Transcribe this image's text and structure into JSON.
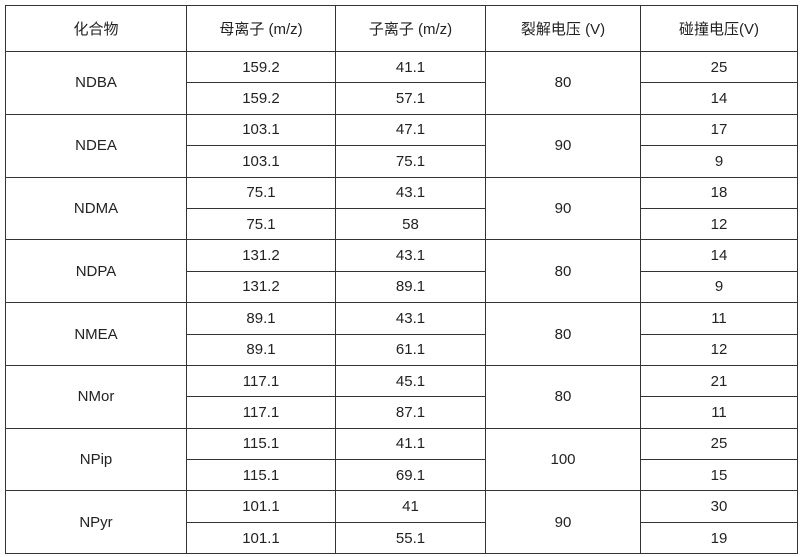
{
  "table": {
    "headers": [
      "化合物",
      "母离子 (m/z)",
      "子离子 (m/z)",
      "裂解电压 (V)",
      "碰撞电压(V)"
    ],
    "groups": [
      {
        "compound": "NDBA",
        "fragmentor": "80",
        "rows": [
          {
            "precursor": "159.2",
            "product": "41.1",
            "collision": "25"
          },
          {
            "precursor": "159.2",
            "product": "57.1",
            "collision": "14"
          }
        ]
      },
      {
        "compound": "NDEA",
        "fragmentor": "90",
        "rows": [
          {
            "precursor": "103.1",
            "product": "47.1",
            "collision": "17"
          },
          {
            "precursor": "103.1",
            "product": "75.1",
            "collision": "9"
          }
        ]
      },
      {
        "compound": "NDMA",
        "fragmentor": "90",
        "rows": [
          {
            "precursor": "75.1",
            "product": "43.1",
            "collision": "18"
          },
          {
            "precursor": "75.1",
            "product": "58",
            "collision": "12"
          }
        ]
      },
      {
        "compound": "NDPA",
        "fragmentor": "80",
        "rows": [
          {
            "precursor": "131.2",
            "product": "43.1",
            "collision": "14"
          },
          {
            "precursor": "131.2",
            "product": "89.1",
            "collision": "9"
          }
        ]
      },
      {
        "compound": "NMEA",
        "fragmentor": "80",
        "rows": [
          {
            "precursor": "89.1",
            "product": "43.1",
            "collision": "11"
          },
          {
            "precursor": "89.1",
            "product": "61.1",
            "collision": "12"
          }
        ]
      },
      {
        "compound": "NMor",
        "fragmentor": "80",
        "rows": [
          {
            "precursor": "117.1",
            "product": "45.1",
            "collision": "21"
          },
          {
            "precursor": "117.1",
            "product": "87.1",
            "collision": "11"
          }
        ]
      },
      {
        "compound": "NPip",
        "fragmentor": "100",
        "rows": [
          {
            "precursor": "115.1",
            "product": "41.1",
            "collision": "25"
          },
          {
            "precursor": "115.1",
            "product": "69.1",
            "collision": "15"
          }
        ]
      },
      {
        "compound": "NPyr",
        "fragmentor": "90",
        "rows": [
          {
            "precursor": "101.1",
            "product": "41",
            "collision": "30"
          },
          {
            "precursor": "101.1",
            "product": "55.1",
            "collision": "19"
          }
        ]
      }
    ]
  }
}
